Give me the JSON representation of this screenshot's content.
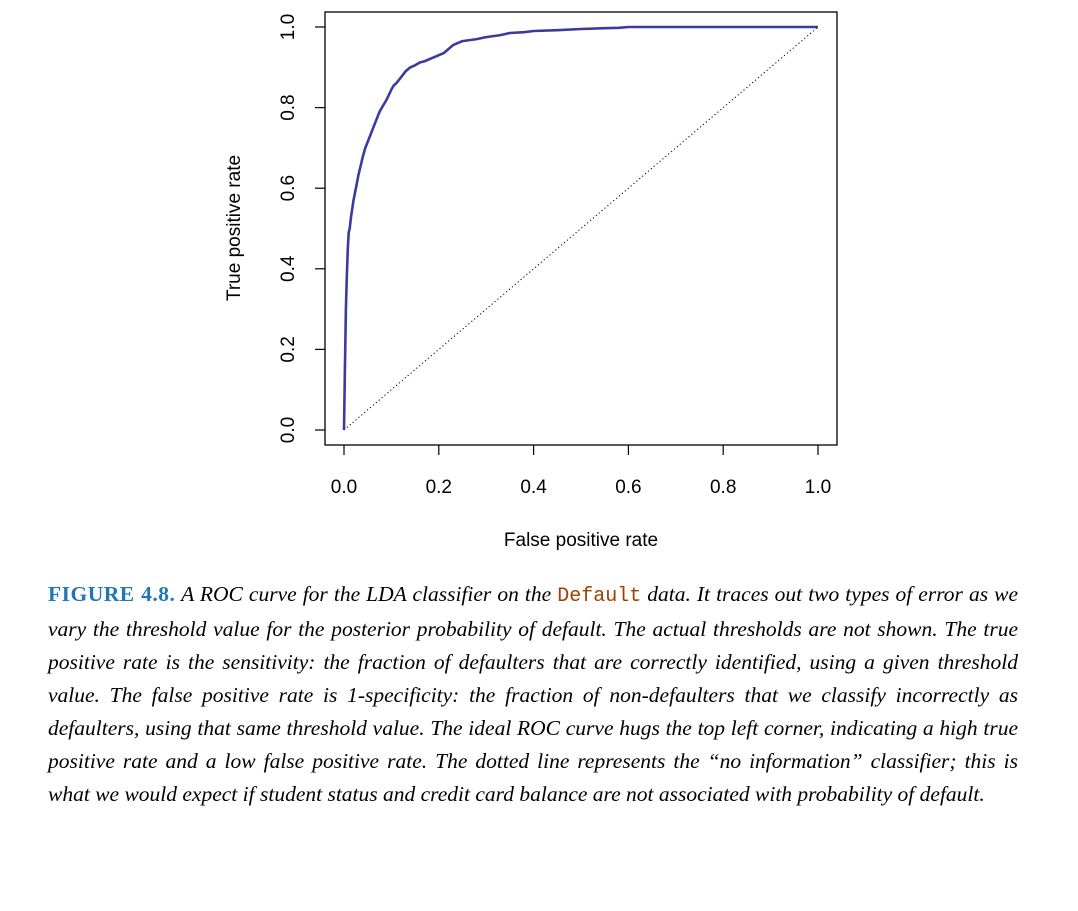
{
  "chart_data": {
    "type": "line",
    "xlabel": "False positive rate",
    "ylabel": "True positive rate",
    "xlim": [
      0,
      1
    ],
    "ylim": [
      0,
      1
    ],
    "xticks": [
      "0.0",
      "0.2",
      "0.4",
      "0.6",
      "0.8",
      "1.0"
    ],
    "yticks": [
      "0.0",
      "0.2",
      "0.4",
      "0.6",
      "0.8",
      "1.0"
    ],
    "grid": false,
    "series": [
      {
        "color": "#3b3b9c",
        "style": "solid",
        "x": [
          0,
          0.002,
          0.004,
          0.006,
          0.008,
          0.01,
          0.012,
          0.015,
          0.02,
          0.025,
          0.03,
          0.035,
          0.04,
          0.045,
          0.05,
          0.055,
          0.06,
          0.065,
          0.07,
          0.075,
          0.08,
          0.09,
          0.1,
          0.105,
          0.11,
          0.12,
          0.13,
          0.14,
          0.15,
          0.16,
          0.17,
          0.18,
          0.19,
          0.2,
          0.21,
          0.22,
          0.23,
          0.24,
          0.25,
          0.28,
          0.3,
          0.33,
          0.35,
          0.38,
          0.4,
          0.45,
          0.5,
          0.55,
          0.58,
          0.6,
          0.7,
          0.8,
          0.9,
          1.0
        ],
        "y": [
          0,
          0.15,
          0.3,
          0.38,
          0.45,
          0.49,
          0.5,
          0.53,
          0.57,
          0.6,
          0.63,
          0.655,
          0.68,
          0.7,
          0.715,
          0.73,
          0.745,
          0.76,
          0.775,
          0.79,
          0.8,
          0.82,
          0.845,
          0.855,
          0.86,
          0.875,
          0.89,
          0.9,
          0.905,
          0.912,
          0.915,
          0.92,
          0.925,
          0.93,
          0.935,
          0.945,
          0.955,
          0.96,
          0.965,
          0.97,
          0.975,
          0.98,
          0.985,
          0.987,
          0.99,
          0.992,
          0.995,
          0.997,
          0.998,
          1.0,
          1.0,
          1.0,
          1.0,
          1.0
        ]
      },
      {
        "color": "#000000",
        "style": "dotted",
        "x": [
          0,
          1
        ],
        "y": [
          0,
          1
        ]
      }
    ]
  },
  "caption": {
    "label": "FIGURE 4.8.",
    "text_before_code": " A ROC curve for the LDA classifier on the ",
    "code": "Default",
    "text_after_code": " data. It traces out two types of error as we vary the threshold value for the posterior probability of default. The actual thresholds are not shown. The true positive rate is the sensitivity: the fraction of defaulters that are correctly identified, using a given threshold value. The false positive rate is 1-specificity: the fraction of non-defaulters that we classify incorrectly as defaulters, using that same threshold value. The ideal ROC curve hugs the top left corner, indicating a high true positive rate and a low false positive rate. The dotted line represents the “no information” classifier; this is what we would expect if student status and credit card balance are not associated with probability of default."
  }
}
